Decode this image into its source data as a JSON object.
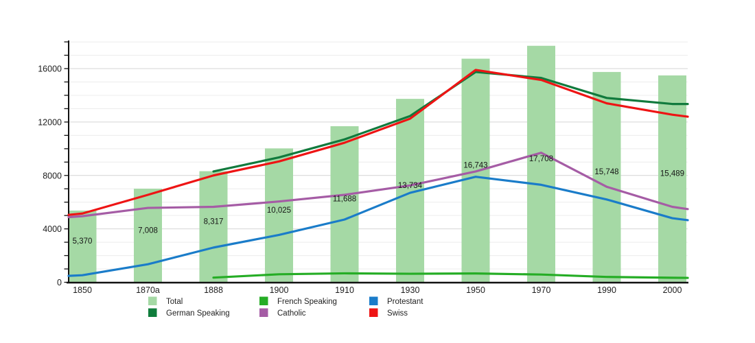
{
  "chart_data": {
    "type": "bar+line",
    "title": "",
    "xlabel": "",
    "ylabel": "",
    "categories": [
      "1850",
      "1870a",
      "1888",
      "1900",
      "1910",
      "1930",
      "1950",
      "1970",
      "1990",
      "2000"
    ],
    "y_ticks": [
      0,
      4000,
      8000,
      12000,
      16000
    ],
    "y_tick_labels": [
      "0",
      "4000",
      "8000",
      "12000",
      "16000"
    ],
    "ylim": [
      0,
      18050
    ],
    "grid": "horizontal minor every 1000, major every 4000",
    "legend_position": "bottom",
    "bar_series": {
      "name": "Total",
      "color": "#a5d9a5",
      "values": [
        5370,
        7008,
        8317,
        10025,
        11688,
        13734,
        16743,
        17708,
        15748,
        15489
      ],
      "value_labels": [
        "5,370",
        "7,008",
        "8,317",
        "10,025",
        "11,688",
        "13,734",
        "16,743",
        "17,708",
        "15,748",
        "15,489"
      ]
    },
    "line_series": [
      {
        "name": "French Speaking",
        "color": "#25ad25",
        "values": [
          null,
          null,
          350,
          600,
          670,
          640,
          660,
          580,
          400,
          340
        ],
        "edge_left": null,
        "edge_right": 330
      },
      {
        "name": "Protestant",
        "color": "#1a7cc9",
        "values": [
          530,
          1350,
          2600,
          3550,
          4700,
          6700,
          7900,
          7300,
          6200,
          4800
        ],
        "edge_left": 480,
        "edge_right": 4650
      },
      {
        "name": "Catholic",
        "color": "#a55ca5",
        "values": [
          4950,
          5570,
          5650,
          6050,
          6550,
          7250,
          8300,
          9700,
          7150,
          5650
        ],
        "edge_left": 4880,
        "edge_right": 5480
      },
      {
        "name": "German Speaking",
        "color": "#117a3d",
        "values": [
          null,
          null,
          8300,
          9350,
          10700,
          12450,
          15750,
          15300,
          13800,
          13350
        ],
        "edge_left": null,
        "edge_right": 13350
      },
      {
        "name": "Swiss",
        "color": "#ee1414",
        "values": [
          5150,
          6550,
          8000,
          9050,
          10450,
          12250,
          15900,
          15150,
          13400,
          12550
        ],
        "edge_left": 5050,
        "edge_right": 12400
      }
    ],
    "legend": [
      {
        "label": "Total",
        "color": "#a5d9a5"
      },
      {
        "label": "German Speaking",
        "color": "#0f7d3c"
      },
      {
        "label": "French Speaking",
        "color": "#25ad25"
      },
      {
        "label": "Catholic",
        "color": "#a55ca5"
      },
      {
        "label": "Protestant",
        "color": "#1a7cc9"
      },
      {
        "label": "Swiss",
        "color": "#ee1414"
      }
    ]
  },
  "text_colors": {
    "axis_label": "#1d1d1d",
    "bar_label": "#151515",
    "legend_label": "#222222"
  }
}
